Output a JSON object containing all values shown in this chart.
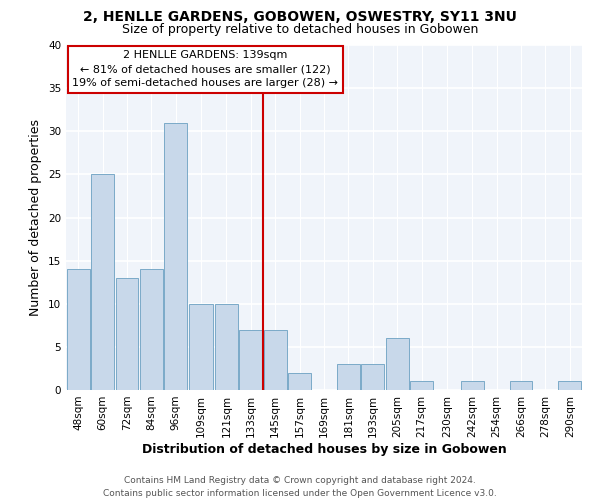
{
  "title": "2, HENLLE GARDENS, GOBOWEN, OSWESTRY, SY11 3NU",
  "subtitle": "Size of property relative to detached houses in Gobowen",
  "xlabel": "Distribution of detached houses by size in Gobowen",
  "ylabel": "Number of detached properties",
  "bar_labels": [
    "48sqm",
    "60sqm",
    "72sqm",
    "84sqm",
    "96sqm",
    "109sqm",
    "121sqm",
    "133sqm",
    "145sqm",
    "157sqm",
    "169sqm",
    "181sqm",
    "193sqm",
    "205sqm",
    "217sqm",
    "230sqm",
    "242sqm",
    "254sqm",
    "266sqm",
    "278sqm",
    "290sqm"
  ],
  "bar_values": [
    14,
    25,
    13,
    14,
    31,
    10,
    10,
    7,
    7,
    2,
    0,
    3,
    3,
    6,
    1,
    0,
    1,
    0,
    1,
    0,
    1
  ],
  "bar_color": "#c8d8ea",
  "bar_edge_color": "#7aaac8",
  "bin_edges": [
    42,
    54,
    66,
    78,
    90,
    102,
    115,
    127,
    139,
    151,
    163,
    175,
    187,
    199,
    211,
    223,
    236,
    248,
    260,
    272,
    284,
    296
  ],
  "vline_x": 139,
  "vline_color": "#cc0000",
  "ylim": [
    0,
    40
  ],
  "yticks": [
    0,
    5,
    10,
    15,
    20,
    25,
    30,
    35,
    40
  ],
  "annotation_title": "2 HENLLE GARDENS: 139sqm",
  "annotation_line1": "← 81% of detached houses are smaller (122)",
  "annotation_line2": "19% of semi-detached houses are larger (28) →",
  "footer_line1": "Contains HM Land Registry data © Crown copyright and database right 2024.",
  "footer_line2": "Contains public sector information licensed under the Open Government Licence v3.0.",
  "title_fontsize": 10,
  "subtitle_fontsize": 9,
  "axis_label_fontsize": 9,
  "tick_fontsize": 7.5,
  "annotation_fontsize": 8,
  "footer_fontsize": 6.5,
  "figure_bg": "#ffffff",
  "plot_bg": "#f0f4fa"
}
